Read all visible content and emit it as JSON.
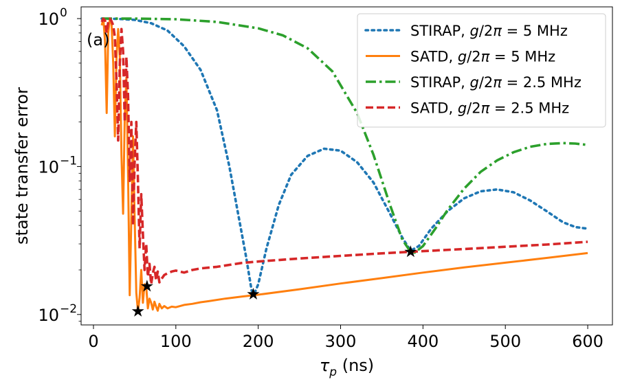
{
  "chart_data": {
    "type": "line",
    "panel_label": "(a)",
    "xlabel": "τ_p (ns)",
    "xlabel_parts": {
      "main": "τ",
      "sub": "p",
      "unit": " (ns)"
    },
    "ylabel": "state transfer error",
    "xlim": [
      -15,
      630
    ],
    "ylim": [
      0.0085,
      1.2
    ],
    "yscale": "log",
    "x_ticks": [
      0,
      100,
      200,
      300,
      400,
      500,
      600
    ],
    "x_tick_labels": [
      "0",
      "100",
      "200",
      "300",
      "400",
      "500",
      "600"
    ],
    "y_ticks": [
      {
        "value": 1,
        "base": "10",
        "exp": "0"
      },
      {
        "value": 0.1,
        "base": "10",
        "exp": "−1"
      },
      {
        "value": 0.01,
        "base": "10",
        "exp": "−2"
      }
    ],
    "legend_position": "top-right",
    "series": [
      {
        "name": "STIRAP, g/2π = 5 MHz",
        "label_prefix": "STIRAP, ",
        "label_math": "g/2π = 5 MHz",
        "color": "#1f77b4",
        "style": "dotted",
        "x": [
          10,
          30,
          50,
          70,
          90,
          110,
          130,
          150,
          165,
          175,
          185,
          192,
          195,
          200,
          210,
          225,
          240,
          260,
          280,
          300,
          320,
          340,
          360,
          375,
          385,
          395,
          410,
          430,
          450,
          470,
          490,
          510,
          530,
          550,
          570,
          585,
          600
        ],
        "y": [
          1.0,
          0.995,
          0.98,
          0.93,
          0.83,
          0.65,
          0.45,
          0.24,
          0.1,
          0.05,
          0.025,
          0.0145,
          0.0137,
          0.016,
          0.028,
          0.055,
          0.088,
          0.118,
          0.132,
          0.128,
          0.107,
          0.078,
          0.048,
          0.033,
          0.027,
          0.029,
          0.038,
          0.05,
          0.061,
          0.068,
          0.07,
          0.067,
          0.059,
          0.05,
          0.042,
          0.039,
          0.038
        ]
      },
      {
        "name": "SATD, g/2π = 5 MHz",
        "label_prefix": "SATD, ",
        "label_math": "g/2π = 5 MHz",
        "color": "#ff7f0e",
        "style": "solid",
        "x": [
          10,
          12,
          14,
          16,
          18,
          20,
          22,
          24,
          26,
          28,
          30,
          32,
          34,
          36,
          38,
          40,
          42,
          44,
          46,
          48,
          50,
          52,
          54,
          56,
          58,
          60,
          62,
          64,
          66,
          68,
          70,
          72,
          74,
          76,
          78,
          80,
          83,
          86,
          90,
          95,
          100,
          110,
          120,
          130,
          140,
          160,
          180,
          200,
          250,
          300,
          350,
          400,
          450,
          500,
          550,
          600
        ],
        "y": [
          0.9,
          1.0,
          0.7,
          0.23,
          0.8,
          1.0,
          0.92,
          0.5,
          0.16,
          0.55,
          0.85,
          0.55,
          0.12,
          0.048,
          0.22,
          0.4,
          0.09,
          0.0135,
          0.045,
          0.16,
          0.045,
          0.014,
          0.0105,
          0.013,
          0.02,
          0.012,
          0.016,
          0.0155,
          0.011,
          0.0128,
          0.012,
          0.0108,
          0.0122,
          0.0113,
          0.0106,
          0.0118,
          0.011,
          0.0114,
          0.011,
          0.0113,
          0.0112,
          0.0116,
          0.0118,
          0.0121,
          0.0123,
          0.0128,
          0.0132,
          0.0136,
          0.0148,
          0.0162,
          0.0176,
          0.0192,
          0.0208,
          0.0224,
          0.0241,
          0.026
        ]
      },
      {
        "name": "STIRAP, g/2π = 2.5 MHz",
        "label_prefix": "STIRAP, ",
        "label_math": "g/2π = 2.5 MHz",
        "color": "#2ca02c",
        "style": "dashdot",
        "x": [
          10,
          50,
          100,
          150,
          200,
          230,
          260,
          290,
          320,
          340,
          360,
          375,
          385,
          390,
          400,
          415,
          430,
          450,
          470,
          490,
          510,
          530,
          550,
          570,
          585,
          600
        ],
        "y": [
          1.0,
          1.0,
          0.99,
          0.95,
          0.86,
          0.77,
          0.63,
          0.44,
          0.23,
          0.12,
          0.055,
          0.032,
          0.0265,
          0.0262,
          0.029,
          0.038,
          0.051,
          0.071,
          0.092,
          0.11,
          0.125,
          0.136,
          0.142,
          0.144,
          0.143,
          0.14
        ]
      },
      {
        "name": "SATD, g/2π = 2.5 MHz",
        "label_prefix": "SATD, ",
        "label_math": "g/2π = 2.5 MHz",
        "color": "#d62728",
        "style": "dashed",
        "x": [
          10,
          12,
          14,
          16,
          18,
          20,
          22,
          24,
          26,
          28,
          30,
          32,
          34,
          36,
          38,
          40,
          42,
          44,
          46,
          48,
          50,
          52,
          54,
          56,
          58,
          60,
          62,
          64,
          66,
          68,
          70,
          72,
          74,
          76,
          78,
          80,
          83,
          86,
          90,
          95,
          100,
          110,
          120,
          130,
          150,
          180,
          200,
          250,
          300,
          350,
          400,
          450,
          500,
          550,
          600
        ],
        "y": [
          0.95,
          1.0,
          0.97,
          0.8,
          0.95,
          1.0,
          0.96,
          0.9,
          0.75,
          0.38,
          0.15,
          0.5,
          0.85,
          0.6,
          0.2,
          0.55,
          0.3,
          0.08,
          0.2,
          0.04,
          0.11,
          0.2,
          0.08,
          0.028,
          0.065,
          0.035,
          0.02,
          0.03,
          0.018,
          0.022,
          0.016,
          0.019,
          0.021,
          0.017,
          0.0195,
          0.0165,
          0.0175,
          0.0185,
          0.019,
          0.0195,
          0.0198,
          0.0192,
          0.02,
          0.0205,
          0.021,
          0.0223,
          0.0228,
          0.0239,
          0.0249,
          0.0259,
          0.0268,
          0.0277,
          0.0287,
          0.0297,
          0.031
        ]
      }
    ],
    "markers": {
      "symbol": "star",
      "color": "#000000",
      "points": [
        {
          "x": 54,
          "y": 0.0105
        },
        {
          "x": 65,
          "y": 0.0155
        },
        {
          "x": 194,
          "y": 0.0137
        },
        {
          "x": 385,
          "y": 0.0265
        }
      ]
    }
  }
}
